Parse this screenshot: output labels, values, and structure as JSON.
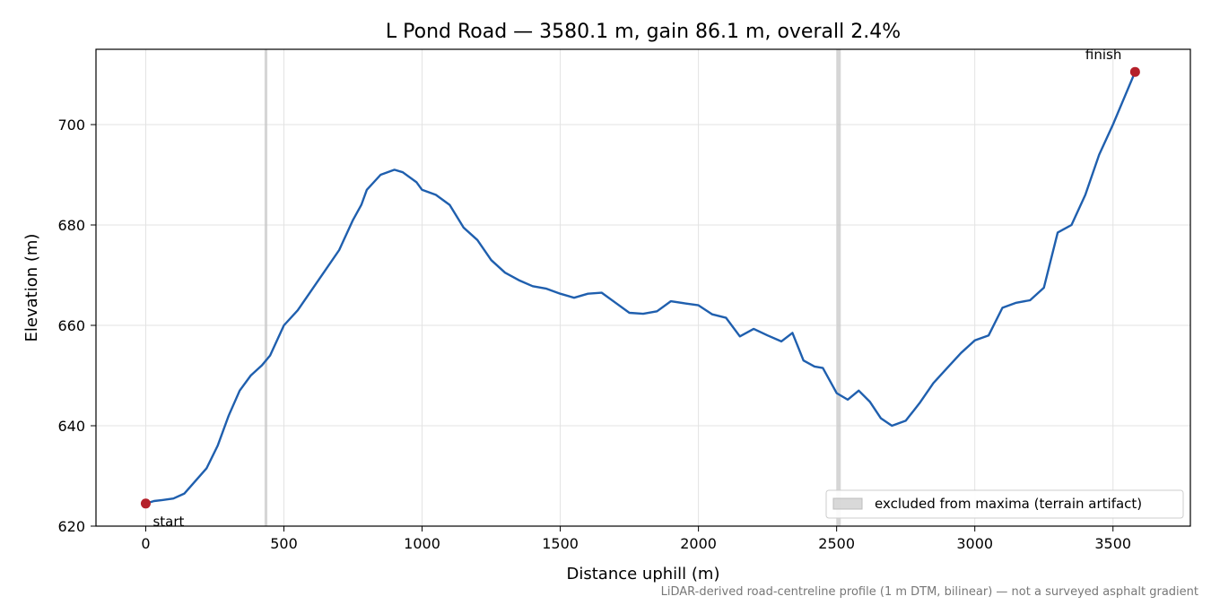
{
  "chart_data": {
    "type": "line",
    "title": "L Pond Road — 3580.1 m, gain 86.1 m, overall 2.4%",
    "xlabel": "Distance uphill (m)",
    "ylabel": "Elevation (m)",
    "xlim": [
      -180,
      3780
    ],
    "ylim": [
      620,
      715
    ],
    "xticks": [
      0,
      500,
      1000,
      1500,
      2000,
      2500,
      3000,
      3500
    ],
    "yticks": [
      620,
      640,
      660,
      680,
      700
    ],
    "grid": true,
    "legend_placement": "lower-right",
    "series": [
      {
        "color": "#1f5fae",
        "x": [
          0,
          30,
          60,
          100,
          140,
          180,
          220,
          260,
          300,
          340,
          380,
          420,
          450,
          500,
          550,
          600,
          650,
          700,
          750,
          780,
          800,
          850,
          900,
          930,
          980,
          1000,
          1050,
          1100,
          1150,
          1200,
          1250,
          1300,
          1350,
          1400,
          1450,
          1500,
          1550,
          1600,
          1650,
          1700,
          1750,
          1800,
          1850,
          1900,
          1950,
          2000,
          2050,
          2100,
          2150,
          2200,
          2250,
          2300,
          2340,
          2380,
          2420,
          2450,
          2500,
          2540,
          2580,
          2620,
          2660,
          2700,
          2750,
          2800,
          2850,
          2900,
          2950,
          3000,
          3050,
          3100,
          3150,
          3200,
          3250,
          3300,
          3350,
          3400,
          3450,
          3500,
          3580
        ],
        "y": [
          624.5,
          625,
          625.2,
          625.5,
          626.5,
          629,
          631.5,
          636,
          642,
          647,
          650,
          652,
          654,
          660,
          663,
          667,
          671,
          675,
          681,
          684,
          687,
          690,
          691,
          690.5,
          688.5,
          687,
          686,
          684,
          679.5,
          677,
          673,
          670.5,
          669,
          667.8,
          667.3,
          666.3,
          665.5,
          666.3,
          666.5,
          664.5,
          662.5,
          662.3,
          662.8,
          664.8,
          664.4,
          664.0,
          662.2,
          661.5,
          657.8,
          659.3,
          658.0,
          656.8,
          658.5,
          653,
          651.8,
          651.5,
          646.5,
          645.2,
          647.0,
          644.8,
          641.5,
          640.0,
          641.0,
          644.5,
          648.5,
          651.5,
          654.5,
          657.0,
          658.0,
          663.5,
          664.5,
          665.0,
          667.5,
          678.5,
          680.0,
          686.0,
          694.0,
          700.0,
          710.5
        ]
      }
    ],
    "excluded_bands": [
      [
        430,
        440
      ],
      [
        2500,
        2515
      ]
    ],
    "legend": [
      {
        "label": "excluded from maxima (terrain artifact)",
        "swatch": "#d0d0d0"
      }
    ],
    "endpoints": [
      {
        "label": "start",
        "x": 0,
        "y": 624.5,
        "color": "#b5202a"
      },
      {
        "label": "finish",
        "x": 3580,
        "y": 710.5,
        "color": "#b5202a"
      }
    ],
    "footnote": "LiDAR-derived road-centreline profile (1 m DTM, bilinear) — not a surveyed asphalt gradient"
  }
}
